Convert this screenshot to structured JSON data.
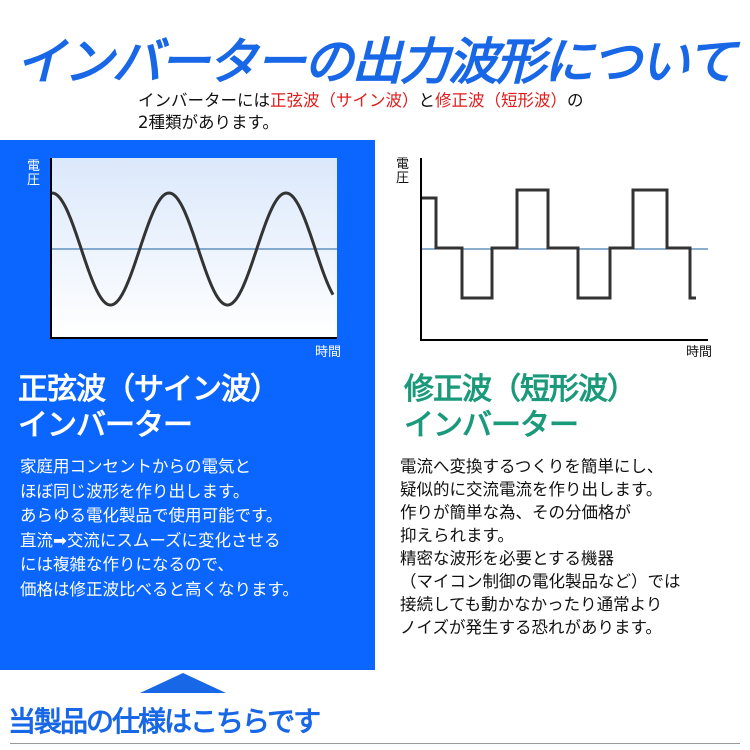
{
  "title": "インバーターの出力波形について",
  "intro": {
    "part1": "インバーターには",
    "sine": "正弦波（サイン波）",
    "part2": "と",
    "modified": "修正波（短形波）",
    "part3": "の",
    "line2": "2種類があります。"
  },
  "axis": {
    "y": "電圧",
    "x": "時間"
  },
  "left": {
    "heading1": "正弦波（サイン波）",
    "heading2": "インバーター",
    "lines": [
      "家庭用コンセントからの電気と",
      "ほぼ同じ波形を作り出します。",
      "あらゆる電化製品で使用可能です。",
      "直流➡交流にスムーズに変化させる",
      "には複雑な作りになるので、",
      "価格は修正波比べると高くなります。"
    ]
  },
  "right": {
    "heading1": "修正波（短形波）",
    "heading2": "インバーター",
    "lines": [
      "電流へ変換するつくりを簡単にし、",
      "疑似的に交流電流を作り出します。",
      "作りが簡単な為、その分価格が",
      "抑えられます。",
      "精密な波形を必要とする機器",
      "（マイコン制御の電化製品など）では",
      "接続しても動かなかったり通常より",
      "ノイズが発生する恐れがあります。"
    ]
  },
  "cta": "当製品の仕様はこちらです",
  "colors": {
    "blue": "#0a66ff",
    "title": "#1767e6",
    "red": "#e21b1b",
    "green": "#1a9a7a"
  }
}
